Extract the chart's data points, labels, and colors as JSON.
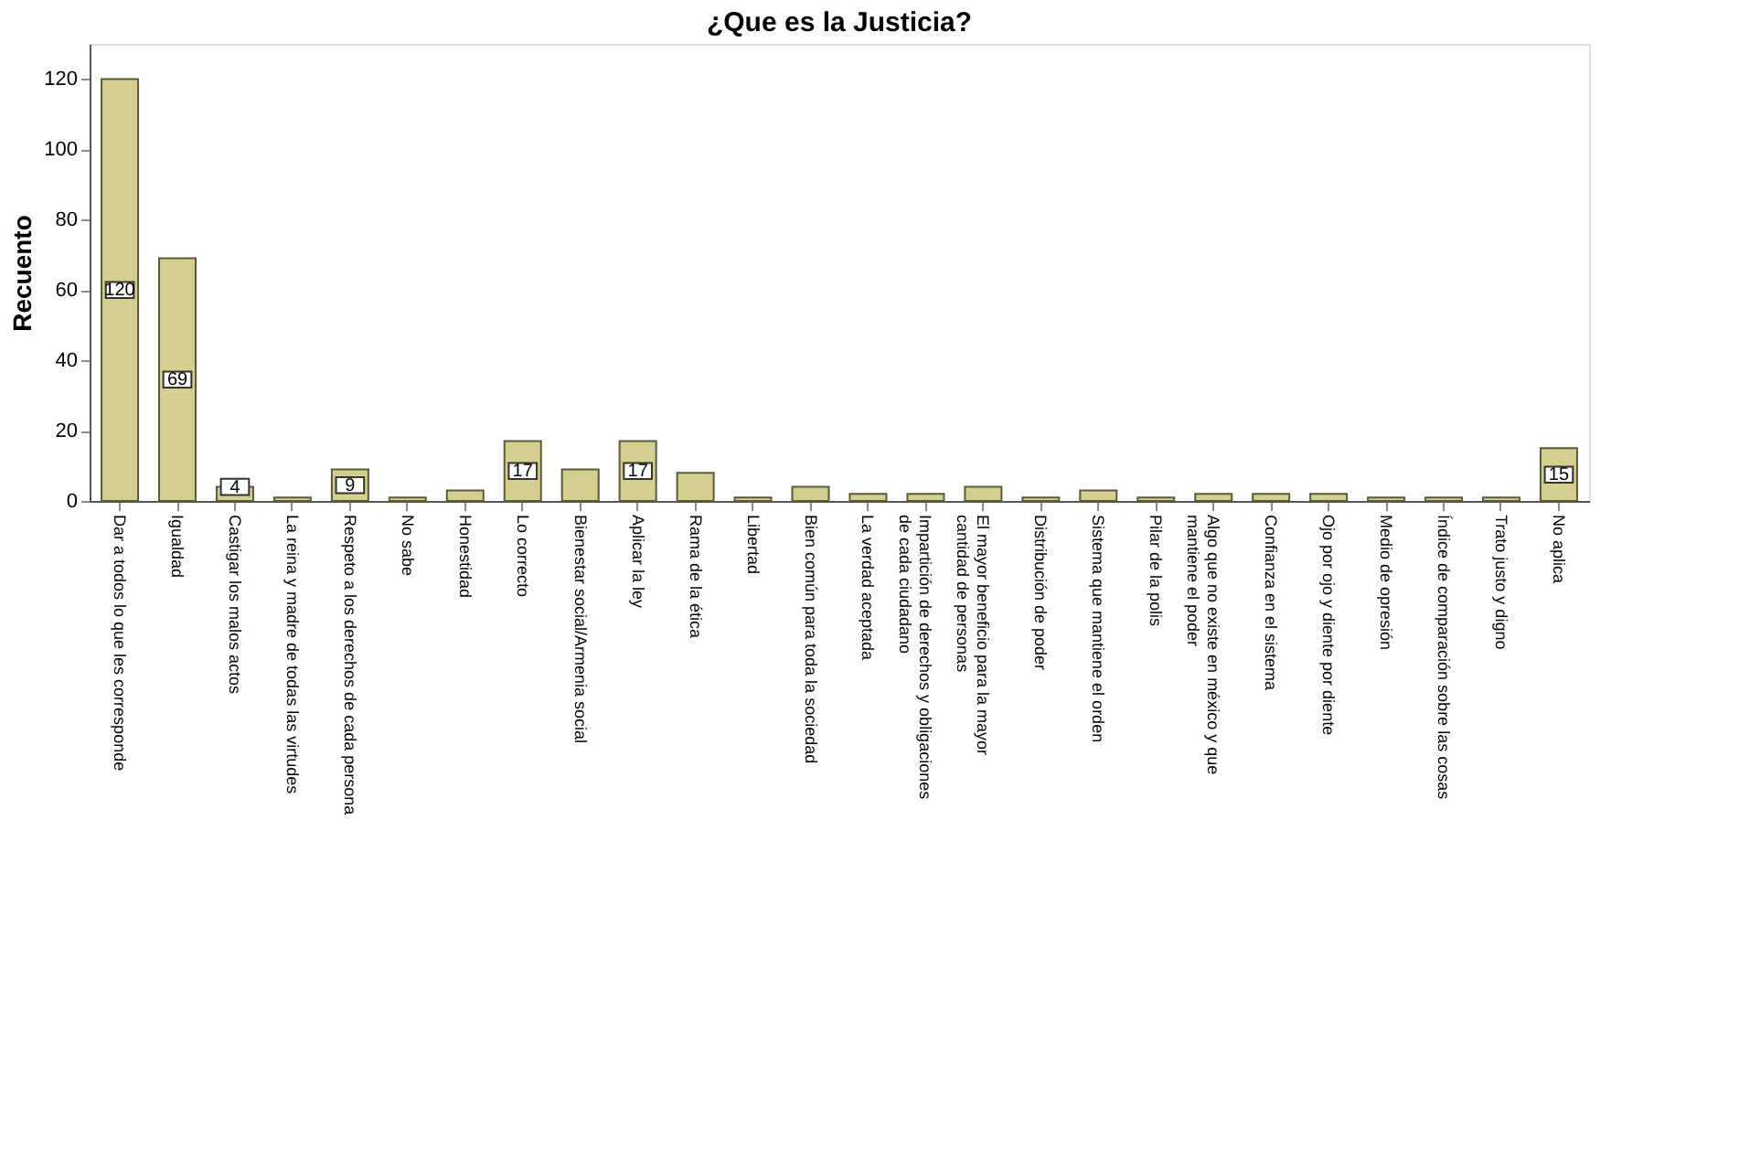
{
  "chart_data": {
    "type": "bar",
    "title": "¿Que es la Justicia?",
    "ylabel": "Recuento",
    "categories": [
      "Dar a todos lo que les corresponde",
      "Igualdad",
      "Castigar los malos actos",
      "La reina y madre de todas las virtudes",
      "Respeto a los derechos de cada persona",
      "No sabe",
      "Honestidad",
      "Lo correcto",
      "Bienestar social/Armenia social",
      "Aplicar la ley",
      "Rama de la ética",
      "Libertad",
      "Bien común para toda la sociedad",
      "La verdad aceptada",
      "Impartición de derechos y obligaciones de cada ciudadano",
      "El mayor beneficio para la mayor cantidad de personas",
      "Distribución de poder",
      "Sistema que mantiene el orden",
      "Pilar de la polis",
      "Algo que no existe en méxico y que mantiene el poder",
      "Confianza en el sistema",
      "Ojo por ojo y diente por diente",
      "Medio de opresión",
      "Índice de comparación sobre las cosas",
      "Trato justo y digno",
      "No aplica"
    ],
    "values": [
      120,
      69,
      4,
      1,
      9,
      1,
      3,
      17,
      9,
      17,
      8,
      1,
      4,
      2,
      2,
      4,
      1,
      3,
      1,
      2,
      2,
      2,
      1,
      1,
      1,
      15
    ],
    "value_labels": [
      "120",
      "69",
      "4",
      null,
      "9",
      null,
      null,
      "17",
      null,
      "17",
      null,
      null,
      null,
      null,
      null,
      null,
      null,
      null,
      null,
      null,
      null,
      null,
      null,
      null,
      null,
      "15"
    ],
    "color": "#d4cf8e",
    "ylim": [
      0,
      130
    ],
    "yticks": [
      0,
      20,
      40,
      60,
      80,
      100,
      120
    ],
    "grid": false
  }
}
